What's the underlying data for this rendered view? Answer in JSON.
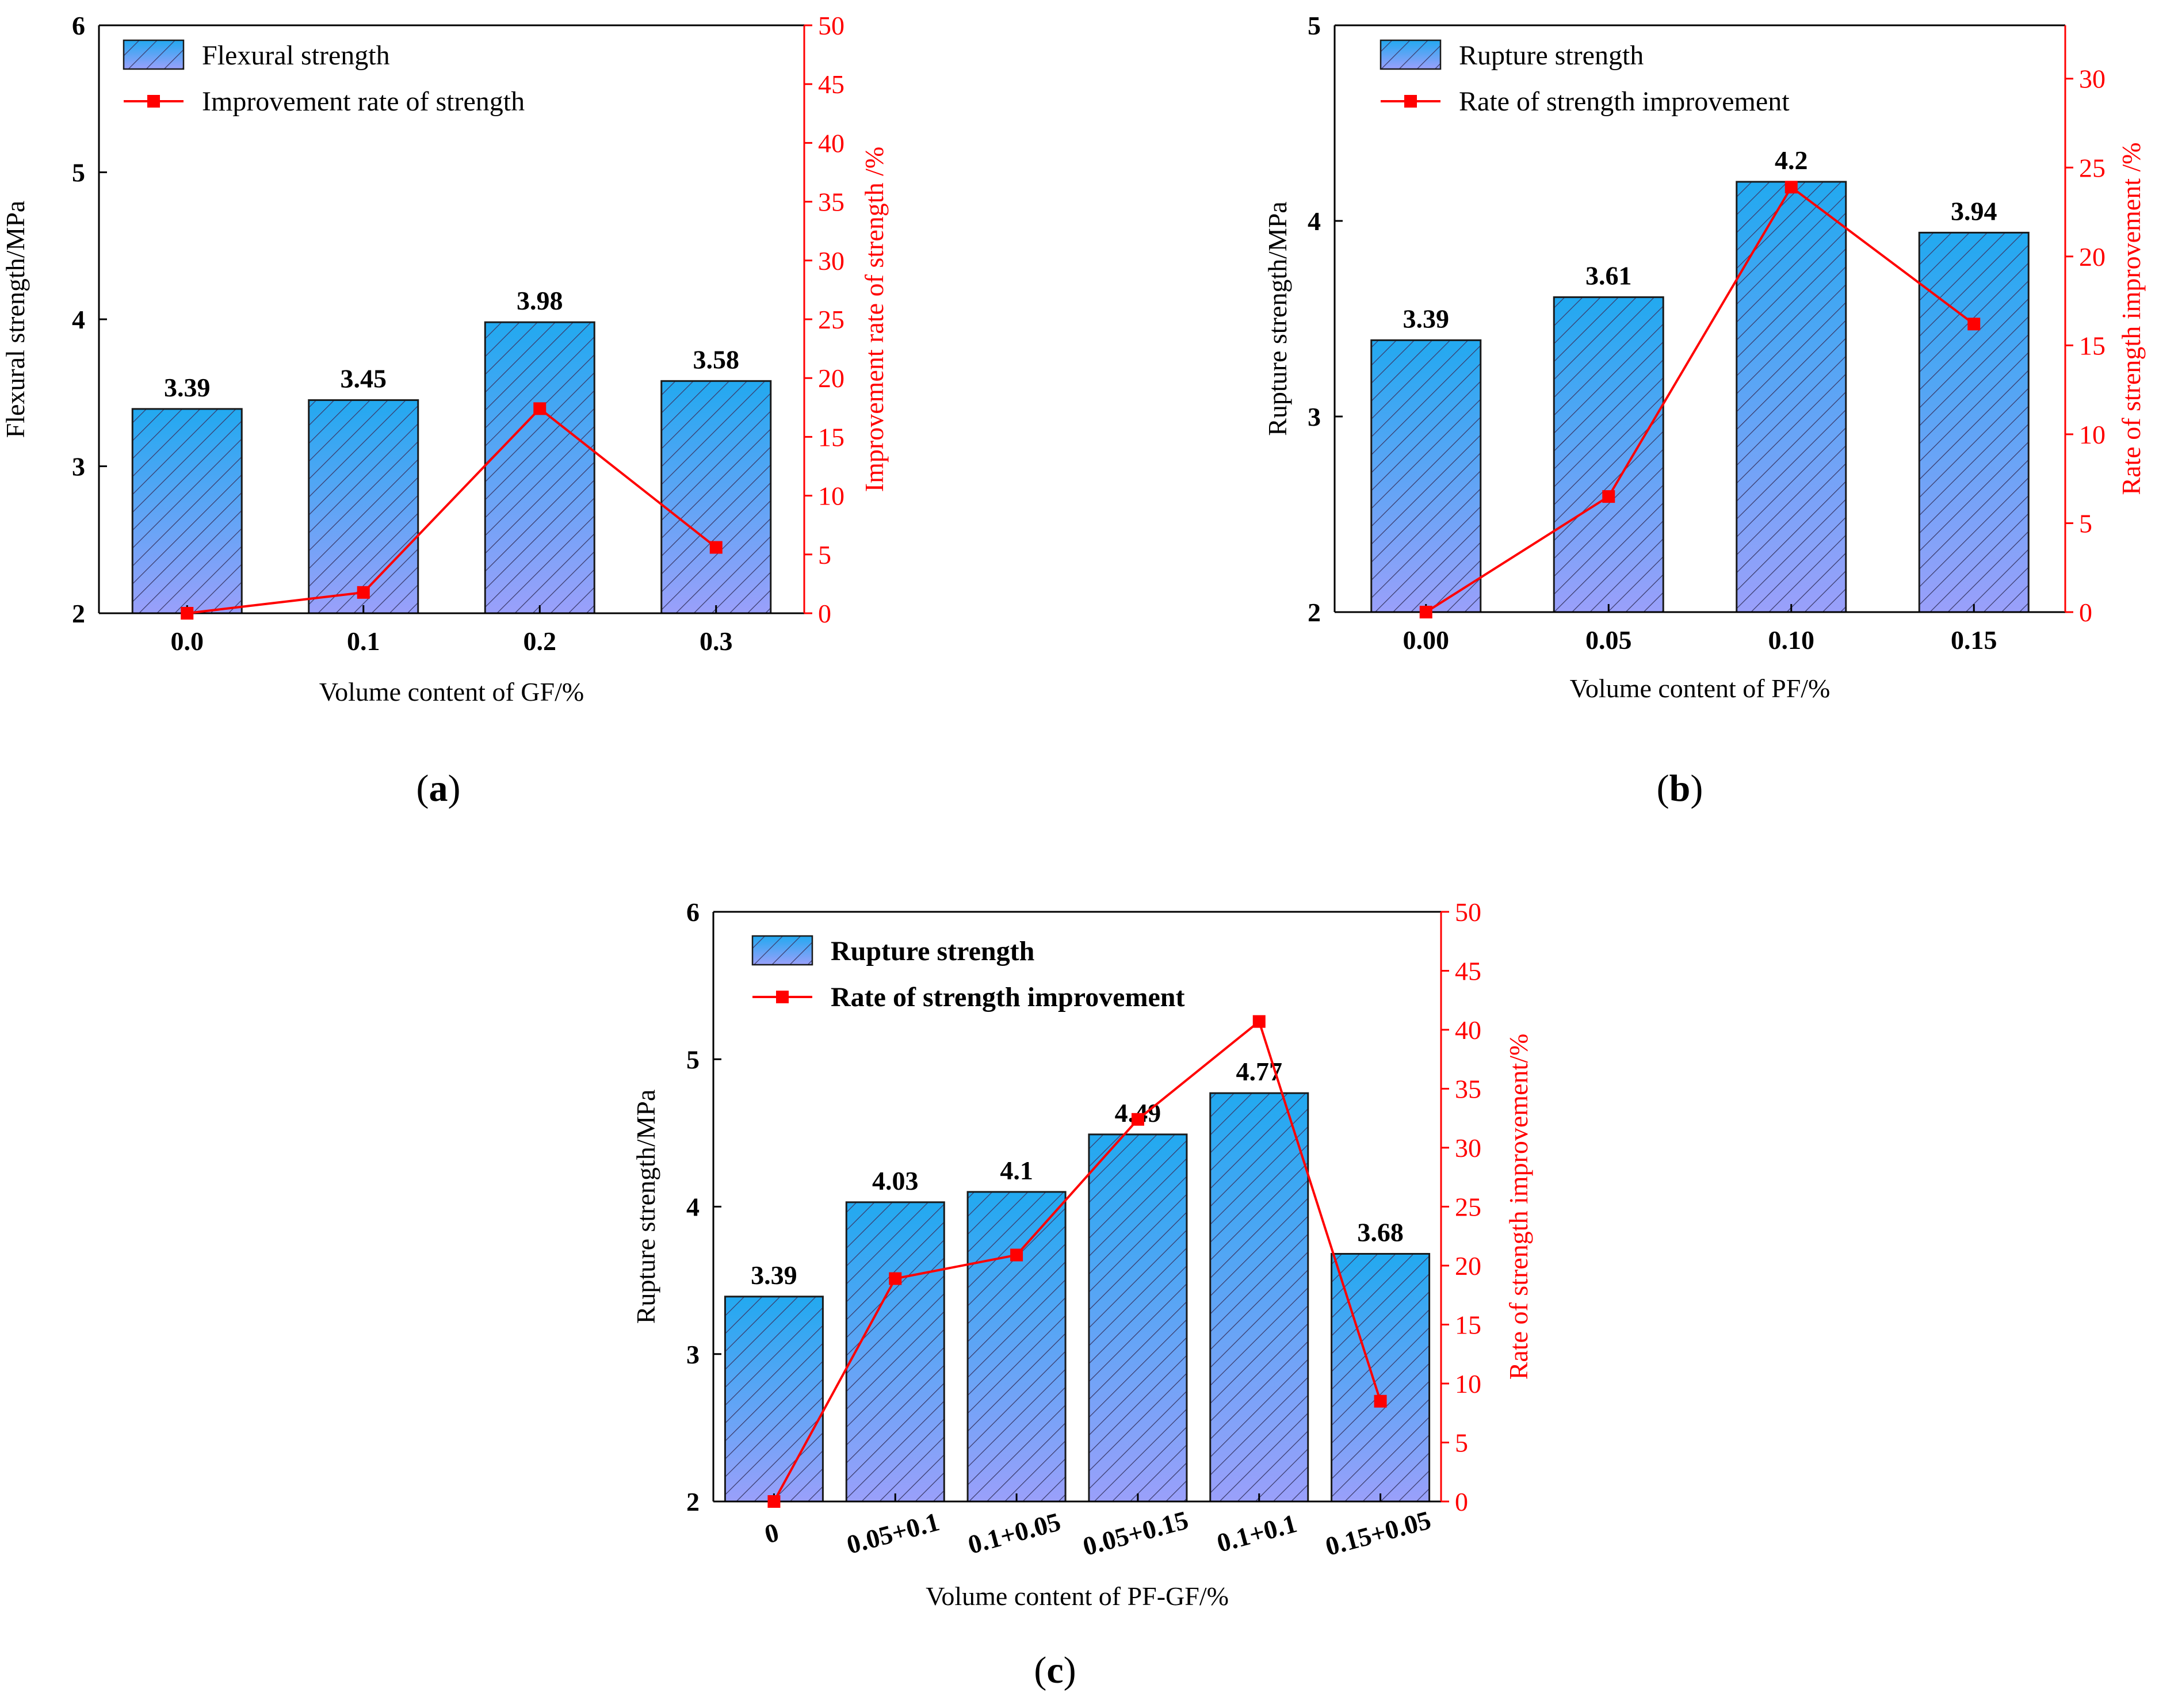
{
  "figure": {
    "panels": [
      "a",
      "b",
      "c"
    ]
  },
  "colors": {
    "bar_top": "#22a9f0",
    "bar_bottom": "#9aa0fa",
    "bar_edge": "#1a1a1a",
    "hatch": "#3a3a6a",
    "line": "#ff0000",
    "left_axis": "#000000",
    "right_axis": "#ff0000"
  },
  "chart_data": [
    {
      "type": "bar",
      "panel": "a",
      "categories": [
        "0.0",
        "0.1",
        "0.2",
        "0.3"
      ],
      "series": [
        {
          "name": "Flexural strength",
          "axis": "left",
          "values": [
            3.39,
            3.45,
            3.98,
            3.58
          ]
        },
        {
          "name": "Improvement rate of strength",
          "axis": "right",
          "type": "line",
          "values": [
            0,
            1.77,
            17.4,
            5.6
          ]
        }
      ],
      "data_labels": [
        "3.39",
        "3.45",
        "3.98",
        "3.58"
      ],
      "xlabel": "Volume content of  GF/%",
      "ylabel": "Flexural strength/MPa",
      "y2label": "Improvement rate of strength /%",
      "ylim": [
        2,
        6
      ],
      "yticks": [
        2,
        3,
        4,
        5,
        6
      ],
      "y2lim": [
        0,
        50
      ],
      "y2ticks": [
        0,
        5,
        10,
        15,
        20,
        25,
        30,
        35,
        40,
        45,
        50
      ],
      "legend_bold": false,
      "x_rotated": false,
      "grid": false,
      "legend": "top-left"
    },
    {
      "type": "bar",
      "panel": "b",
      "categories": [
        "0.00",
        "0.05",
        "0.10",
        "0.15"
      ],
      "series": [
        {
          "name": "Rupture strength",
          "axis": "left",
          "values": [
            3.39,
            3.61,
            4.2,
            3.94
          ]
        },
        {
          "name": "Rate of strength improvement",
          "axis": "right",
          "type": "line",
          "values": [
            0,
            6.5,
            23.9,
            16.2
          ]
        }
      ],
      "data_labels": [
        "3.39",
        "3.61",
        "4.2",
        "3.94"
      ],
      "xlabel": "Volume content of PF/%",
      "ylabel": "Rupture strength/MPa",
      "y2label": "Rate of strength improvement /%",
      "ylim": [
        2,
        5
      ],
      "yticks": [
        2,
        3,
        4,
        5
      ],
      "y2lim": [
        0,
        33
      ],
      "y2ticks": [
        0,
        5,
        10,
        15,
        20,
        25,
        30
      ],
      "legend_bold": false,
      "x_rotated": false,
      "grid": false,
      "legend": "top-left"
    },
    {
      "type": "bar",
      "panel": "c",
      "categories": [
        "0",
        "0.05+0.1",
        "0.1+0.05",
        "0.05+0.15",
        "0.1+0.1",
        "0.15+0.05"
      ],
      "series": [
        {
          "name": "Rupture strength",
          "axis": "left",
          "values": [
            3.39,
            4.03,
            4.1,
            4.49,
            4.77,
            3.68
          ]
        },
        {
          "name": "Rate of strength improvement",
          "axis": "right",
          "type": "line",
          "values": [
            0,
            18.9,
            20.9,
            32.4,
            40.7,
            8.5
          ]
        }
      ],
      "data_labels": [
        "3.39",
        "4.03",
        "4.1",
        "4.49",
        "4.77",
        "3.68"
      ],
      "xlabel": "Volume content of  PF-GF/%",
      "ylabel": "Rupture strength/MPa",
      "y2label": "Rate of strength improvement/%",
      "ylim": [
        2,
        6
      ],
      "yticks": [
        2,
        3,
        4,
        5,
        6
      ],
      "y2lim": [
        0,
        50
      ],
      "y2ticks": [
        0,
        5,
        10,
        15,
        20,
        25,
        30,
        35,
        40,
        45,
        50
      ],
      "legend_bold": true,
      "x_rotated": true,
      "grid": false,
      "legend": "top-left"
    }
  ]
}
